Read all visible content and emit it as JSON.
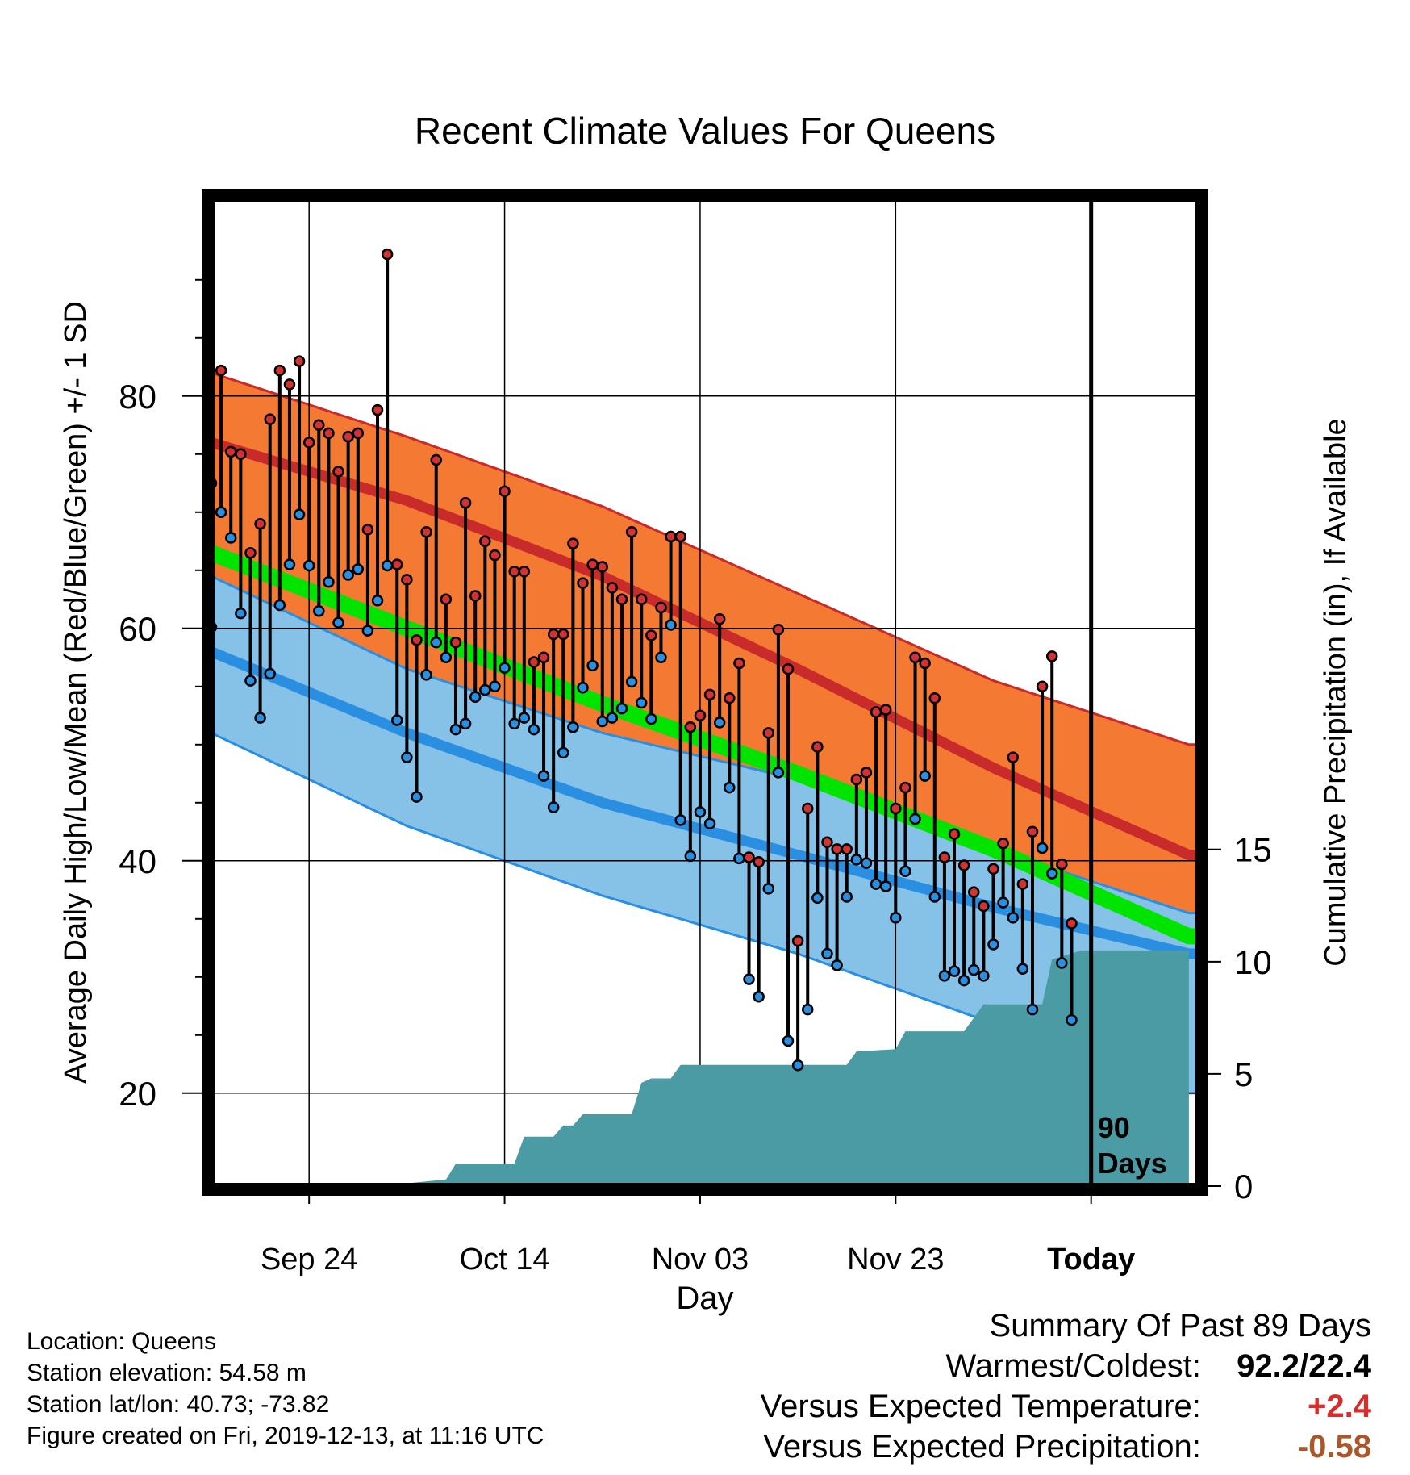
{
  "chart_data": {
    "type": "line",
    "title": "Recent Climate Values For Queens",
    "xlabel": "Day",
    "ylabel": "Average Daily High/Low/Mean (Red/Blue/Green) +/- 1 SD",
    "y2label": "Cumulative Precipitation (in), If Available",
    "ylim": [
      12,
      97
    ],
    "y2lim": [
      0,
      44
    ],
    "xlim": [
      0,
      101
    ],
    "x_ticks": [
      {
        "x": 10,
        "label": "Sep 24"
      },
      {
        "x": 30,
        "label": "Oct 14"
      },
      {
        "x": 50,
        "label": "Nov 03"
      },
      {
        "x": 70,
        "label": "Nov 23"
      },
      {
        "x": 90,
        "label": "Today"
      }
    ],
    "y_ticks": [
      20,
      40,
      60,
      80
    ],
    "y2_ticks": [
      0,
      5,
      10,
      15
    ],
    "today_x": 90,
    "today_label": [
      "90",
      "Days"
    ],
    "normals": {
      "x": [
        0,
        20,
        40,
        60,
        80,
        100
      ],
      "high_mean": [
        76.0,
        71.0,
        64.5,
        56.5,
        48.0,
        40.5
      ],
      "high_sd_upper": [
        82.0,
        76.5,
        70.5,
        63.0,
        55.5,
        50.0
      ],
      "low_mean": [
        58.0,
        51.0,
        45.0,
        40.5,
        36.0,
        32.0
      ],
      "low_sd_upper": [
        64.5,
        56.5,
        51.0,
        47.0,
        41.0,
        35.5
      ],
      "low_sd_lower": [
        51.0,
        43.0,
        37.0,
        32.0,
        26.0,
        20.0
      ],
      "mean_avg": [
        66.5,
        60.0,
        53.5,
        47.5,
        41.0,
        33.5
      ]
    },
    "series": [
      {
        "name": "High",
        "color": "#d13232",
        "values": [
          72.5,
          82.2,
          75.2,
          75.0,
          66.5,
          69.0,
          78.0,
          82.2,
          81.0,
          83.0,
          76.0,
          77.5,
          76.8,
          73.5,
          76.5,
          76.8,
          68.5,
          78.8,
          92.2,
          65.5,
          64.2,
          59.0,
          68.3,
          74.5,
          62.5,
          58.8,
          70.8,
          62.8,
          67.5,
          66.3,
          71.8,
          64.9,
          64.9,
          57.1,
          57.5,
          59.5,
          59.5,
          67.3,
          63.9,
          65.5,
          65.3,
          63.5,
          62.5,
          68.3,
          62.5,
          59.4,
          61.8,
          67.9,
          67.9,
          51.5,
          52.5,
          54.3,
          60.8,
          54.0,
          57.0,
          40.3,
          39.9,
          51.0,
          59.9,
          56.5,
          33.1,
          44.5,
          49.8,
          41.6,
          41.0,
          41.0,
          47.0,
          47.6,
          52.8,
          53.0,
          44.5,
          46.3,
          57.5,
          57.0,
          54.0,
          40.3,
          42.3,
          39.6,
          37.3,
          36.1,
          39.3,
          41.5,
          48.9,
          38.0,
          42.5,
          55.0,
          57.6,
          39.7,
          34.6
        ]
      },
      {
        "name": "Low",
        "color": "#2a8fe0",
        "values": [
          60.1,
          70.0,
          67.8,
          61.3,
          55.5,
          52.3,
          56.1,
          62.0,
          65.5,
          69.8,
          65.4,
          61.5,
          64.0,
          60.5,
          64.6,
          65.1,
          59.8,
          62.4,
          65.4,
          52.1,
          48.9,
          45.5,
          56.0,
          58.8,
          57.5,
          51.3,
          51.8,
          54.1,
          54.7,
          55.0,
          56.6,
          51.8,
          52.3,
          51.3,
          47.3,
          44.6,
          49.3,
          51.5,
          54.9,
          56.8,
          52.0,
          52.3,
          53.1,
          55.4,
          53.6,
          52.2,
          57.5,
          60.3,
          43.5,
          40.4,
          44.2,
          43.2,
          51.9,
          46.3,
          40.2,
          29.8,
          28.3,
          37.6,
          47.6,
          24.5,
          22.4,
          27.2,
          36.8,
          32.0,
          31.0,
          36.9,
          40.1,
          39.8,
          38.0,
          37.8,
          35.1,
          39.1,
          43.6,
          47.3,
          36.9,
          30.1,
          30.5,
          29.7,
          30.6,
          30.1,
          32.8,
          36.4,
          35.1,
          30.7,
          27.2,
          41.1,
          38.9,
          31.2,
          26.3
        ]
      }
    ],
    "precipitation": {
      "x": [
        0,
        19.5,
        24.0,
        25.0,
        31.0,
        32.0,
        35.0,
        36.0,
        37.0,
        38.0,
        39.0,
        43.0,
        44.0,
        45.0,
        47.0,
        48.0,
        65.0,
        66.0,
        70.0,
        71.0,
        77.0,
        79.0,
        85.0,
        86.0,
        89.0,
        90.0,
        100.0
      ],
      "values": [
        0.0,
        0.1,
        0.3,
        1.0,
        1.0,
        2.2,
        2.2,
        2.7,
        2.7,
        3.2,
        3.2,
        3.2,
        4.6,
        4.8,
        4.8,
        5.4,
        5.4,
        6.0,
        6.1,
        6.9,
        6.9,
        8.1,
        8.1,
        10.1,
        10.5,
        10.5,
        10.5
      ]
    }
  },
  "station_info": {
    "location": "Location: Queens",
    "elevation": "Station elevation: 54.58 m",
    "latlon": "Station lat/lon: 40.73; -73.82",
    "created": "Figure created on Fri, 2019-12-13, at 11:16 UTC"
  },
  "summary": {
    "title": "Summary Of Past 89 Days",
    "warmest_coldest_label": "Warmest/Coldest:",
    "warmest_coldest_value": "92.2/22.4",
    "temp_label": "Versus Expected Temperature:",
    "temp_value": "+2.4",
    "precip_label": "Versus Expected Precipitation:",
    "precip_value": "-0.58",
    "colors": {
      "temp": "#d62d2d",
      "precip": "#a8582b"
    }
  }
}
